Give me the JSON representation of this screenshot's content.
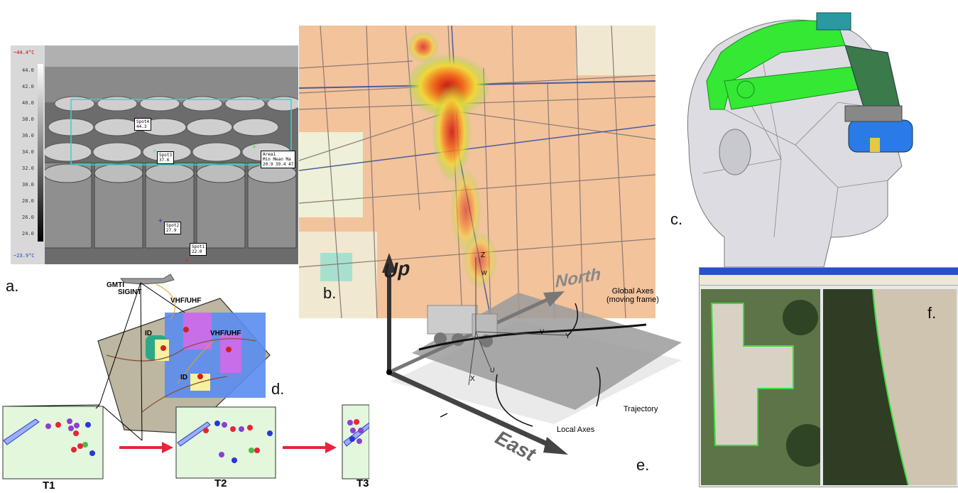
{
  "panels": {
    "a": {
      "letter": "a.",
      "scale_top": "~44.4°C",
      "scale_bottom": "~23.9°C",
      "ticks": [
        "44.0",
        "42.0",
        "40.0",
        "38.0",
        "36.0",
        "34.0",
        "32.0",
        "30.0",
        "28.0",
        "26.0",
        "24.0"
      ],
      "spots": [
        {
          "name": "Spot4",
          "value": "44.3"
        },
        {
          "name": "Spot3",
          "value": "37.6"
        },
        {
          "name": "Spot2",
          "value": "27.9"
        },
        {
          "name": "Spot1",
          "value": "22.0"
        }
      ],
      "area": {
        "name": "Area1",
        "header": "Min  Mean  Ma",
        "values": "20.9 39.4   47"
      }
    },
    "b": {
      "letter": "b."
    },
    "c": {
      "letter": "c."
    },
    "d": {
      "letter": "d.",
      "labels": {
        "gmti": "GMTI",
        "sigint": "SIGINT",
        "vhf1": "VHF/UHF",
        "vhf2": "VHF/UHF",
        "id1": "ID",
        "id2": "ID"
      },
      "frames": [
        "T1",
        "T2",
        "T3"
      ],
      "colors": {
        "frame_bg": "#e2f7dc",
        "arrow": "#e8233a",
        "red": "#e8233a",
        "purple": "#8b3fd0",
        "blue": "#2a36d6",
        "green": "#43c043"
      }
    },
    "e": {
      "letter": "e.",
      "axes": {
        "up": "Up",
        "north": "North",
        "east": "East",
        "z": "Z",
        "w": "W",
        "v": "V",
        "y": "Y",
        "u": "U",
        "x": "X"
      },
      "annotations": {
        "global": "Global Axes",
        "global2": "(moving frame)",
        "trajectory": "Trajectory",
        "local": "Local Axes"
      }
    },
    "f": {
      "letter": "f."
    }
  }
}
